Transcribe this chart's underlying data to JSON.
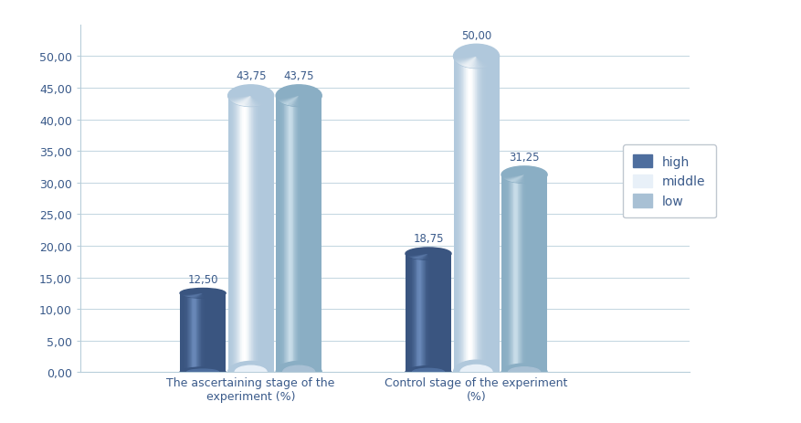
{
  "groups": [
    "The ascertaining stage of the\nexperiment (%)",
    "Control stage of the experiment\n(%)"
  ],
  "series_order": [
    "high",
    "middle",
    "low"
  ],
  "series": {
    "high": [
      12.5,
      18.75
    ],
    "middle": [
      43.75,
      50.0
    ],
    "low": [
      43.75,
      31.25
    ]
  },
  "ylim": [
    0,
    55
  ],
  "yticks": [
    0,
    5,
    10,
    15,
    20,
    25,
    30,
    35,
    40,
    45,
    50
  ],
  "ytick_labels": [
    "0,00",
    "5,00",
    "10,00",
    "15,00",
    "20,00",
    "25,00",
    "30,00",
    "35,00",
    "40,00",
    "45,00",
    "50,00"
  ],
  "legend_labels": [
    "high",
    "middle",
    "low"
  ],
  "value_labels": {
    "high": [
      "12,50",
      "18,75"
    ],
    "middle": [
      "43,75",
      "50,00"
    ],
    "low": [
      "43,75",
      "31,25"
    ]
  },
  "high_color_main": "#4e6e9e",
  "high_color_dark": "#3a5580",
  "high_color_light": "#6888b8",
  "middle_color_main": "#e8f0f8",
  "middle_color_dark": "#b0c8dc",
  "middle_color_light": "#ffffff",
  "low_color_main": "#a8c0d4",
  "low_color_dark": "#8aaec4",
  "low_color_light": "#c8dce8",
  "background_color": "#ffffff",
  "grid_color": "#b8ceda",
  "label_color": "#3a5a8a",
  "text_color": "#3a5a8a"
}
